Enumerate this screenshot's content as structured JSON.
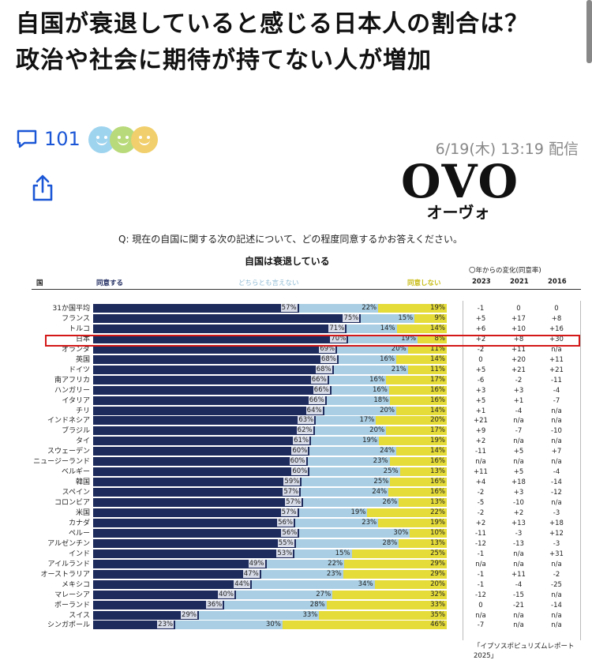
{
  "article": {
    "headline": "自国が衰退していると感じる日本人の割合は？　政治や社会に期待が持てない人が増加",
    "comment_count": "101",
    "date": "6/19(木) 13:19 配信",
    "reaction_faces": [
      "face-blue",
      "face-green",
      "face-yellow"
    ]
  },
  "publisher": {
    "logo_main": "OVO",
    "logo_sub": "オーヴォ"
  },
  "icons": {
    "comment": "speech-bubble-icon",
    "share": "share-icon"
  },
  "colors": {
    "agree": "#1d2a5c",
    "neither": "#aacfe4",
    "disagree": "#e5dc3a",
    "highlight": "#d41818",
    "link": "#1a56d6"
  },
  "chart": {
    "question": "Q: 現在の自国に関する次の記述について、どの程度同意するかお答えください。",
    "title": "自国は衰退している",
    "col_country": "国",
    "col_agree": "同意する",
    "col_neither": "どちらとも言えない",
    "col_disagree": "同意しない",
    "change_header": "〇年からの変化(同意率)",
    "years": [
      "2023",
      "2021",
      "2016"
    ],
    "source": "「イプソスポピュリズムレポート2025」"
  },
  "chart_data": {
    "type": "bar",
    "stacked": true,
    "orientation": "horizontal",
    "title": "自国は衰退している",
    "categories": [
      "31か国平均",
      "フランス",
      "トルコ",
      "日本",
      "オランダ",
      "英国",
      "ドイツ",
      "南アフリカ",
      "ハンガリー",
      "イタリア",
      "チリ",
      "インドネシア",
      "ブラジル",
      "タイ",
      "スウェーデン",
      "ニュージーランド",
      "ベルギー",
      "韓国",
      "スペイン",
      "コロンビア",
      "米国",
      "カナダ",
      "ペルー",
      "アルゼンチン",
      "インド",
      "アイルランド",
      "オーストラリア",
      "メキシコ",
      "マレーシア",
      "ポーランド",
      "スイス",
      "シンガポール"
    ],
    "series": [
      {
        "name": "同意する",
        "values": [
          57,
          75,
          71,
          70,
          69,
          68,
          68,
          66,
          66,
          66,
          64,
          63,
          62,
          61,
          60,
          60,
          60,
          59,
          57,
          57,
          57,
          56,
          56,
          55,
          53,
          49,
          47,
          44,
          40,
          36,
          29,
          23
        ]
      },
      {
        "name": "どちらとも言えない",
        "values": [
          22,
          15,
          14,
          19,
          20,
          16,
          21,
          16,
          16,
          18,
          20,
          17,
          20,
          19,
          24,
          23,
          25,
          25,
          24,
          26,
          19,
          23,
          30,
          28,
          15,
          22,
          23,
          34,
          27,
          28,
          33,
          30
        ]
      },
      {
        "name": "同意しない",
        "values": [
          19,
          9,
          14,
          8,
          11,
          14,
          11,
          17,
          16,
          16,
          14,
          20,
          17,
          19,
          14,
          16,
          13,
          16,
          16,
          13,
          22,
          19,
          10,
          13,
          25,
          29,
          29,
          20,
          32,
          33,
          35,
          46
        ]
      }
    ],
    "highlight_category": "日本",
    "change": {
      "2023": [
        "-1",
        "+5",
        "+6",
        "+2",
        "-2",
        "0",
        "+5",
        "-6",
        "+3",
        "+5",
        "+1",
        "+21",
        "+9",
        "+2",
        "-11",
        "n/a",
        "+11",
        "+4",
        "-2",
        "-5",
        "-2",
        "+2",
        "-11",
        "-12",
        "-1",
        "n/a",
        "-1",
        "-1",
        "-12",
        "0",
        "n/a",
        "-7"
      ],
      "2021": [
        "0",
        "+17",
        "+10",
        "+8",
        "+11",
        "+20",
        "+21",
        "-2",
        "+3",
        "+1",
        "-4",
        "n/a",
        "-7",
        "n/a",
        "+5",
        "n/a",
        "+5",
        "+18",
        "+3",
        "-10",
        "+2",
        "+13",
        "-3",
        "-13",
        "n/a",
        "n/a",
        "+11",
        "-4",
        "-15",
        "-21",
        "n/a",
        "n/a"
      ],
      "2016": [
        "0",
        "+8",
        "+16",
        "+30",
        "n/a",
        "+11",
        "+21",
        "-11",
        "-4",
        "-7",
        "n/a",
        "n/a",
        "-10",
        "n/a",
        "+7",
        "n/a",
        "-4",
        "-14",
        "-12",
        "n/a",
        "-3",
        "+18",
        "+12",
        "-3",
        "+31",
        "n/a",
        "-2",
        "-25",
        "n/a",
        "-14",
        "n/a",
        "n/a"
      ]
    }
  }
}
